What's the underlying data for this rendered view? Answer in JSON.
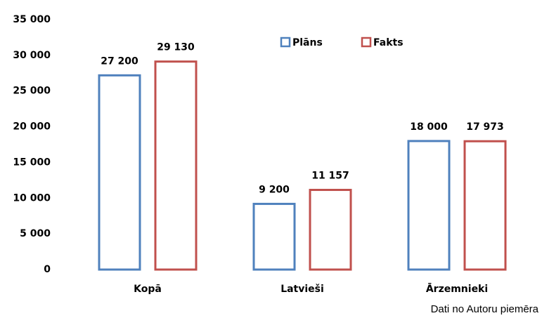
{
  "chart_data": {
    "type": "bar",
    "categories": [
      "Kopā",
      "Latvieši",
      "Ārzemnieki"
    ],
    "series": [
      {
        "name": "Plāns",
        "color": "#4f81bd",
        "values": [
          27200,
          9200,
          18000
        ],
        "value_labels": [
          "27 200",
          "9 200",
          "18 000"
        ]
      },
      {
        "name": "Fakts",
        "color": "#c0504d",
        "values": [
          29130,
          11157,
          17973
        ],
        "value_labels": [
          "29 130",
          "11 157",
          "17 973"
        ]
      }
    ],
    "ylim": [
      0,
      35000
    ],
    "yticks": [
      {
        "value": 0,
        "label": "0"
      },
      {
        "value": 5000,
        "label": "5 000"
      },
      {
        "value": 10000,
        "label": "10 000"
      },
      {
        "value": 15000,
        "label": "15 000"
      },
      {
        "value": 20000,
        "label": "20 000"
      },
      {
        "value": 25000,
        "label": "25 000"
      },
      {
        "value": 30000,
        "label": "30 000"
      },
      {
        "value": 35000,
        "label": "35 000"
      }
    ],
    "grid": false,
    "legend": "top",
    "source": "Dati no Autoru piemēra"
  }
}
